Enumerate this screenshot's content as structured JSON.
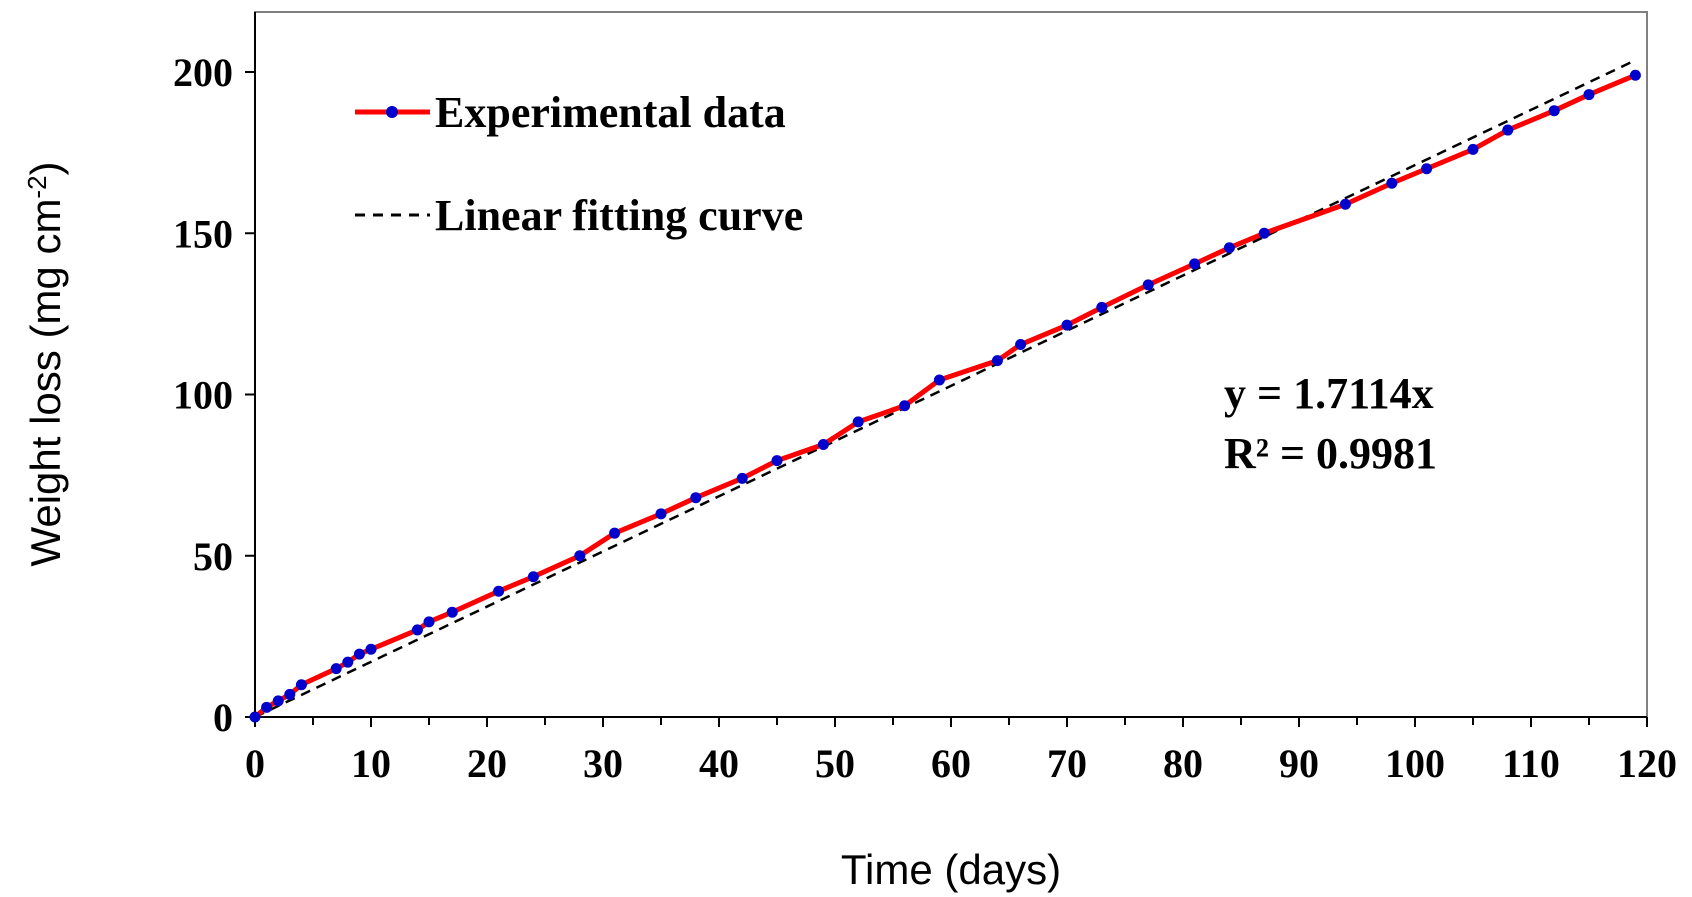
{
  "chart_data": {
    "type": "line",
    "title": "",
    "xlabel": "Time (days)",
    "ylabel_main": "Weight loss (mg cm",
    "ylabel_sup": "-2",
    "ylabel_close": ")",
    "xlim": [
      0,
      120
    ],
    "ylim": [
      0,
      200
    ],
    "x_ticks": [
      0,
      10,
      20,
      30,
      40,
      50,
      60,
      70,
      80,
      90,
      100,
      110,
      120
    ],
    "y_ticks": [
      0,
      50,
      100,
      150,
      200
    ],
    "grid": false,
    "legend_position": "top-left",
    "series": [
      {
        "name": "Experimental data",
        "style": "solid-line-with-markers",
        "line_color": "#ff0000",
        "marker_color": "#0000cc",
        "x": [
          0,
          1,
          2,
          3,
          4,
          7,
          8,
          9,
          10,
          14,
          15,
          17,
          21,
          24,
          28,
          31,
          35,
          38,
          42,
          45,
          49,
          52,
          56,
          59,
          64,
          66,
          70,
          73,
          77,
          81,
          84,
          87,
          94,
          98,
          101,
          105,
          108,
          112,
          115,
          119
        ],
        "y": [
          0,
          3,
          5,
          7,
          10,
          15,
          17,
          19.5,
          21,
          27,
          29.5,
          32.5,
          39,
          43.5,
          50,
          57,
          63,
          68,
          74,
          79.5,
          84.5,
          91.5,
          96.5,
          104.5,
          110.5,
          115.5,
          121.5,
          127,
          134,
          140.5,
          145.5,
          150,
          159,
          165.5,
          170,
          176,
          182,
          188,
          193,
          199
        ]
      },
      {
        "name": "Linear fitting curve",
        "style": "dashed-line",
        "line_color": "#000000",
        "slope": 1.7114,
        "x": [
          0,
          119
        ]
      }
    ],
    "annotations": {
      "equation": "y = 1.7114x",
      "r_squared": "R² = 0.9981"
    }
  }
}
